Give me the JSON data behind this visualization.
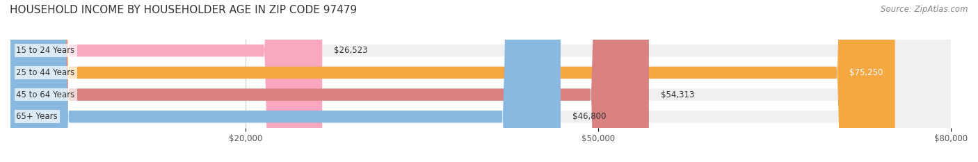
{
  "title": "HOUSEHOLD INCOME BY HOUSEHOLDER AGE IN ZIP CODE 97479",
  "source": "Source: ZipAtlas.com",
  "categories": [
    "15 to 24 Years",
    "25 to 44 Years",
    "45 to 64 Years",
    "65+ Years"
  ],
  "values": [
    26523,
    75250,
    54313,
    46800
  ],
  "bar_colors": [
    "#f9a8c0",
    "#f5a742",
    "#d98080",
    "#89b8e0"
  ],
  "bar_bg_color": "#f0f0f0",
  "label_colors": [
    "#555555",
    "#ffffff",
    "#555555",
    "#555555"
  ],
  "xlim": [
    0,
    80000
  ],
  "xticks": [
    20000,
    50000,
    80000
  ],
  "xtick_labels": [
    "$20,000",
    "$50,000",
    "$80,000"
  ],
  "title_fontsize": 11,
  "source_fontsize": 8.5,
  "bar_height": 0.55,
  "figsize": [
    14.06,
    2.33
  ],
  "dpi": 100
}
